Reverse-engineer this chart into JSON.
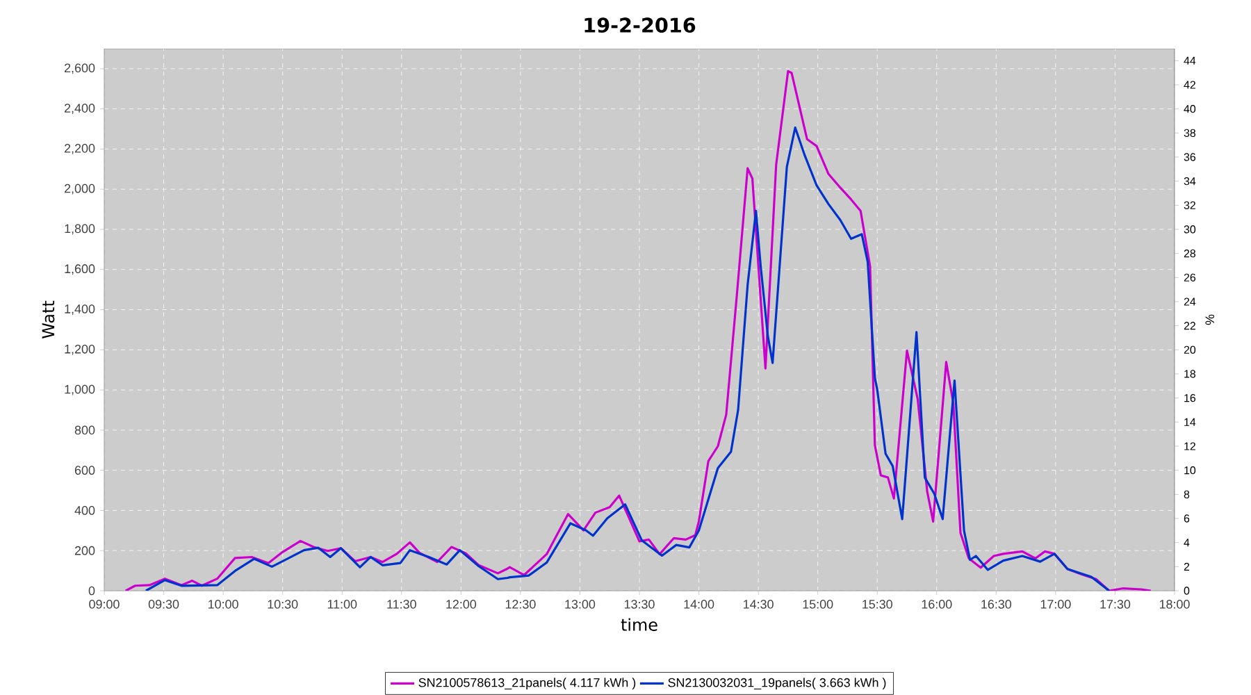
{
  "chart_data": {
    "type": "line",
    "title": "19-2-2016",
    "xlabel": "time",
    "ylabel": "Watt",
    "y2label": "%",
    "xlim": [
      9,
      18
    ],
    "xticks": [
      {
        "value": 9,
        "label": "09:00"
      },
      {
        "value": 9.5,
        "label": "09:30"
      },
      {
        "value": 10,
        "label": "10:00"
      },
      {
        "value": 10.5,
        "label": "10:30"
      },
      {
        "value": 11,
        "label": "11:00"
      },
      {
        "value": 11.5,
        "label": "11:30"
      },
      {
        "value": 12,
        "label": "12:00"
      },
      {
        "value": 12.5,
        "label": "12:30"
      },
      {
        "value": 13,
        "label": "13:00"
      },
      {
        "value": 13.5,
        "label": "13:30"
      },
      {
        "value": 14,
        "label": "14:00"
      },
      {
        "value": 14.5,
        "label": "14:30"
      },
      {
        "value": 15,
        "label": "15:00"
      },
      {
        "value": 15.5,
        "label": "15:30"
      },
      {
        "value": 16,
        "label": "16:00"
      },
      {
        "value": 16.5,
        "label": "16:30"
      },
      {
        "value": 17,
        "label": "17:00"
      },
      {
        "value": 17.5,
        "label": "17:30"
      },
      {
        "value": 18,
        "label": "18:00"
      }
    ],
    "ylim": [
      0,
      2700
    ],
    "yticks": [
      {
        "value": 0,
        "label": "0"
      },
      {
        "value": 200,
        "label": "200"
      },
      {
        "value": 400,
        "label": "400"
      },
      {
        "value": 600,
        "label": "600"
      },
      {
        "value": 800,
        "label": "800"
      },
      {
        "value": 1000,
        "label": "1,000"
      },
      {
        "value": 1200,
        "label": "1,200"
      },
      {
        "value": 1400,
        "label": "1,400"
      },
      {
        "value": 1600,
        "label": "1,600"
      },
      {
        "value": 1800,
        "label": "1,800"
      },
      {
        "value": 2000,
        "label": "2,000"
      },
      {
        "value": 2200,
        "label": "2,200"
      },
      {
        "value": 2400,
        "label": "2,400"
      },
      {
        "value": 2600,
        "label": "2,600"
      }
    ],
    "y2lim": [
      0,
      45
    ],
    "y2ticks": [
      0,
      2,
      4,
      6,
      8,
      10,
      12,
      14,
      16,
      18,
      20,
      22,
      24,
      26,
      28,
      30,
      32,
      34,
      36,
      38,
      40,
      42,
      44
    ],
    "grid": true,
    "legend": "bottom",
    "line_style": "solid",
    "series": [
      {
        "name": "SN2100578613_21panels( 4.117 kWh )",
        "color": "#cc00cc",
        "x": [
          9.18,
          9.26,
          9.38,
          9.51,
          9.65,
          9.74,
          9.82,
          9.95,
          10.1,
          10.24,
          10.38,
          10.49,
          10.65,
          10.76,
          10.88,
          10.99,
          11.11,
          11.24,
          11.34,
          11.46,
          11.57,
          11.65,
          11.8,
          11.92,
          12.04,
          12.15,
          12.31,
          12.39,
          12.41,
          12.53,
          12.72,
          12.9,
          13.03,
          13.13,
          13.25,
          13.33,
          13.5,
          13.58,
          13.67,
          13.79,
          13.89,
          13.97,
          14.0,
          14.08,
          14.16,
          14.23,
          14.32,
          14.41,
          14.45,
          14.56,
          14.65,
          14.75,
          14.78,
          14.91,
          14.99,
          15.09,
          15.19,
          15.28,
          15.36,
          15.44,
          15.48,
          15.53,
          15.59,
          15.64,
          15.75,
          15.84,
          15.92,
          15.97,
          16.08,
          16.14,
          16.2,
          16.27,
          16.37,
          16.48,
          16.56,
          16.72,
          16.83,
          16.91,
          16.99,
          17.1,
          17.22,
          17.34,
          17.45,
          17.57,
          17.72,
          17.8
        ],
        "values": [
          0,
          25,
          28,
          60,
          28,
          50,
          25,
          60,
          163,
          168,
          138,
          189,
          248,
          218,
          198,
          212,
          147,
          168,
          143,
          184,
          241,
          189,
          143,
          218,
          186,
          127,
          87,
          110,
          117,
          78,
          182,
          382,
          301,
          389,
          416,
          474,
          246,
          255,
          182,
          262,
          255,
          277,
          346,
          646,
          720,
          877,
          1476,
          2104,
          2053,
          1107,
          2122,
          2588,
          2579,
          2249,
          2215,
          2076,
          2007,
          1949,
          1892,
          1615,
          725,
          575,
          564,
          460,
          1196,
          955,
          495,
          345,
          1139,
          932,
          288,
          161,
          115,
          173,
          184,
          196,
          161,
          196,
          184,
          108,
          81,
          58,
          0,
          12,
          7,
          0
        ]
      },
      {
        "name": "SN2130032031_19panels( 3.663 kWh )",
        "color": "#0033cc",
        "x": [
          9.35,
          9.51,
          9.65,
          9.95,
          10.1,
          10.26,
          10.41,
          10.53,
          10.68,
          10.8,
          10.9,
          10.99,
          11.15,
          11.24,
          11.34,
          11.49,
          11.57,
          11.73,
          11.88,
          11.99,
          12.15,
          12.31,
          12.39,
          12.41,
          12.57,
          12.72,
          12.92,
          13.05,
          13.11,
          13.23,
          13.38,
          13.52,
          13.69,
          13.81,
          13.92,
          14.0,
          14.16,
          14.27,
          14.33,
          14.41,
          14.48,
          14.52,
          14.58,
          14.62,
          14.74,
          14.81,
          14.89,
          14.99,
          15.09,
          15.19,
          15.28,
          15.37,
          15.42,
          15.48,
          15.5,
          15.57,
          15.63,
          15.71,
          15.83,
          15.9,
          15.98,
          16.05,
          16.15,
          16.23,
          16.28,
          16.33,
          16.43,
          16.56,
          16.72,
          16.87,
          16.99,
          17.1,
          17.3,
          17.45
        ],
        "values": [
          0,
          53,
          25,
          28,
          99,
          159,
          120,
          156,
          202,
          214,
          168,
          212,
          117,
          168,
          127,
          138,
          202,
          168,
          131,
          202,
          122,
          58,
          64,
          67,
          76,
          140,
          336,
          301,
          274,
          361,
          430,
          251,
          175,
          228,
          216,
          300,
          611,
          692,
          900,
          1523,
          1892,
          1615,
          1269,
          1135,
          2111,
          2307,
          2169,
          2019,
          1926,
          1846,
          1753,
          1776,
          1638,
          1061,
          1001,
          683,
          621,
          357,
          1288,
          564,
          483,
          357,
          1047,
          299,
          154,
          173,
          104,
          150,
          173,
          145,
          184,
          108,
          69,
          0
        ]
      }
    ]
  }
}
